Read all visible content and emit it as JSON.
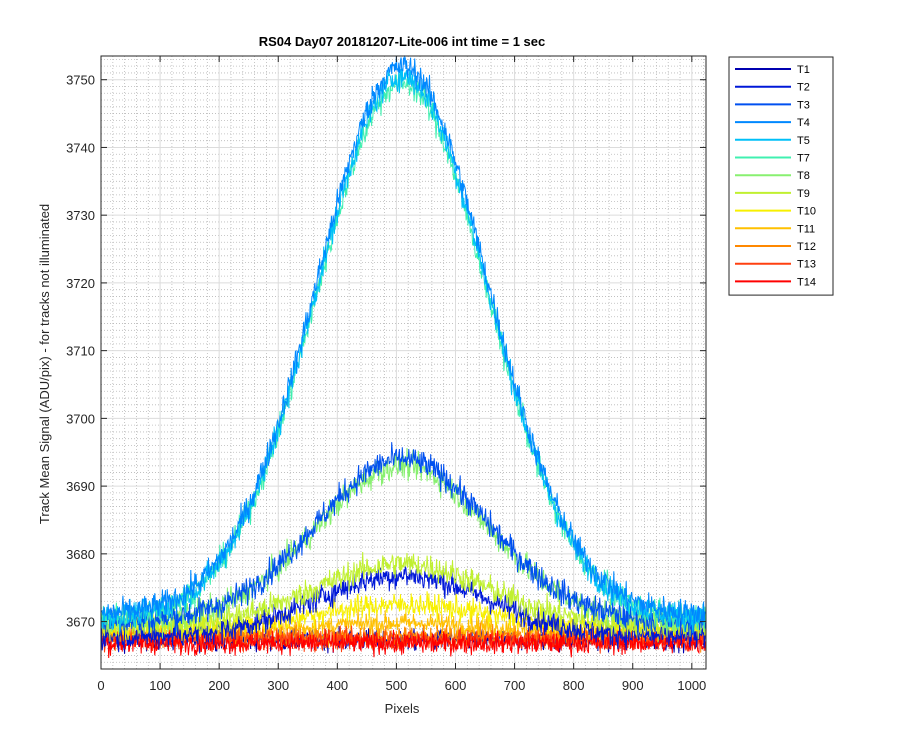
{
  "chart_data": {
    "type": "line",
    "title": "RS04 Day07 20181207-Lite-006 int time = 1 sec",
    "xlabel": "Pixels",
    "ylabel": "Track Mean Signal (ADU/pix) - for tracks not illuminated",
    "xlim": [
      0,
      1024
    ],
    "ylim": [
      3663,
      3753.5
    ],
    "xticks": [
      0,
      100,
      200,
      300,
      400,
      500,
      600,
      700,
      800,
      900,
      1000
    ],
    "yticks": [
      3670,
      3680,
      3690,
      3700,
      3710,
      3720,
      3730,
      3740,
      3750
    ],
    "grid": true,
    "minor_grid": true,
    "legend_position": "outside-right",
    "series": [
      {
        "name": "T1",
        "color": "#0000b0",
        "base": 3667.3,
        "peak": 0,
        "noise": 1.6
      },
      {
        "name": "T2",
        "color": "#0018d8",
        "base": 3667.8,
        "peak": 9.0,
        "noise": 1.9
      },
      {
        "name": "T3",
        "color": "#0050f0",
        "base": 3670.0,
        "peak": 24.0,
        "noise": 2.0
      },
      {
        "name": "T4",
        "color": "#0088ff",
        "base": 3671.0,
        "peak": 81.0,
        "noise": 2.0
      },
      {
        "name": "T5",
        "color": "#00c0f8",
        "base": 3670.5,
        "peak": 80.0,
        "noise": 2.0
      },
      {
        "name": "T7",
        "color": "#40f0b0",
        "base": 3670.5,
        "peak": 79.0,
        "noise": 2.0
      },
      {
        "name": "T8",
        "color": "#88f070",
        "base": 3670.0,
        "peak": 23.0,
        "noise": 2.0
      },
      {
        "name": "T9",
        "color": "#c0f030",
        "base": 3669.5,
        "peak": 9.0,
        "noise": 2.0
      },
      {
        "name": "T10",
        "color": "#f8f000",
        "base": 3669.0,
        "peak": 3.5,
        "noise": 1.8
      },
      {
        "name": "T11",
        "color": "#ffc000",
        "base": 3668.3,
        "peak": 1.5,
        "noise": 1.6
      },
      {
        "name": "T12",
        "color": "#ff8800",
        "base": 3667.8,
        "peak": 0,
        "noise": 1.6
      },
      {
        "name": "T13",
        "color": "#ff4010",
        "base": 3667.3,
        "peak": 0,
        "noise": 1.6
      },
      {
        "name": "T14",
        "color": "#ff0000",
        "base": 3666.8,
        "peak": 0,
        "noise": 1.6
      }
    ],
    "peak_center": 510,
    "peak_width": 205,
    "n_points": 1024
  }
}
